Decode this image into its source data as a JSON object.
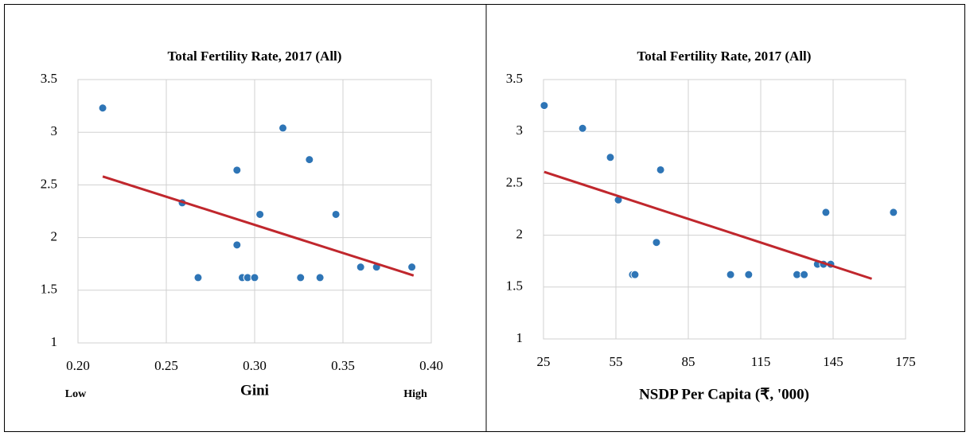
{
  "chart_data": [
    {
      "type": "scatter",
      "title": "Total Fertility Rate, 2017 (All)",
      "x_label": "Gini",
      "x_low_label": "Low",
      "x_high_label": "High",
      "xlim": [
        0.2,
        0.4
      ],
      "xticks": [
        {
          "value": 0.2,
          "label": "0.20"
        },
        0.25,
        {
          "value": 0.3,
          "label": "0.30"
        },
        0.35,
        {
          "value": 0.4,
          "label": "0.40"
        }
      ],
      "ylim": [
        1,
        3.5
      ],
      "yticks": [
        1,
        1.5,
        2,
        2.5,
        3,
        3.5
      ],
      "grid": true,
      "series": [
        {
          "color": "#2e75b6",
          "x": [
            0.214,
            0.259,
            0.268,
            0.29,
            0.29,
            0.293,
            0.296,
            0.3,
            0.303,
            0.316,
            0.326,
            0.331,
            0.337,
            0.346,
            0.36,
            0.369,
            0.389
          ],
          "values": [
            3.23,
            2.33,
            1.62,
            2.64,
            1.93,
            1.62,
            1.62,
            1.62,
            2.22,
            3.04,
            1.62,
            2.74,
            1.62,
            2.22,
            1.72,
            1.72,
            1.72
          ]
        }
      ],
      "trendline": {
        "color": "#c0272d",
        "x": [
          0.214,
          0.39
        ],
        "values": [
          2.58,
          1.64
        ]
      }
    },
    {
      "type": "scatter",
      "title": "Total Fertility Rate, 2017 (All)",
      "x_label": "NSDP Per Capita (₹, '000)",
      "xlim": [
        25,
        175
      ],
      "xticks": [
        25,
        55,
        85,
        115,
        145,
        175
      ],
      "ylim": [
        1,
        3.5
      ],
      "yticks": [
        1,
        1.5,
        2,
        2.5,
        3,
        3.5
      ],
      "grid": true,
      "series": [
        {
          "color": "#2e75b6",
          "x": [
            25.3,
            41.2,
            52.7,
            56,
            73.5,
            71.8,
            61.9,
            62.9,
            102.5,
            110,
            130,
            133,
            138.5,
            141,
            142,
            144,
            170
          ],
          "values": [
            3.25,
            3.03,
            2.75,
            2.34,
            2.63,
            1.93,
            1.62,
            1.62,
            1.62,
            1.62,
            1.62,
            1.62,
            1.72,
            1.72,
            2.22,
            1.72,
            2.22
          ]
        }
      ],
      "trendline": {
        "color": "#c0272d",
        "x": [
          25.3,
          161
        ],
        "values": [
          2.61,
          1.58
        ]
      }
    }
  ]
}
